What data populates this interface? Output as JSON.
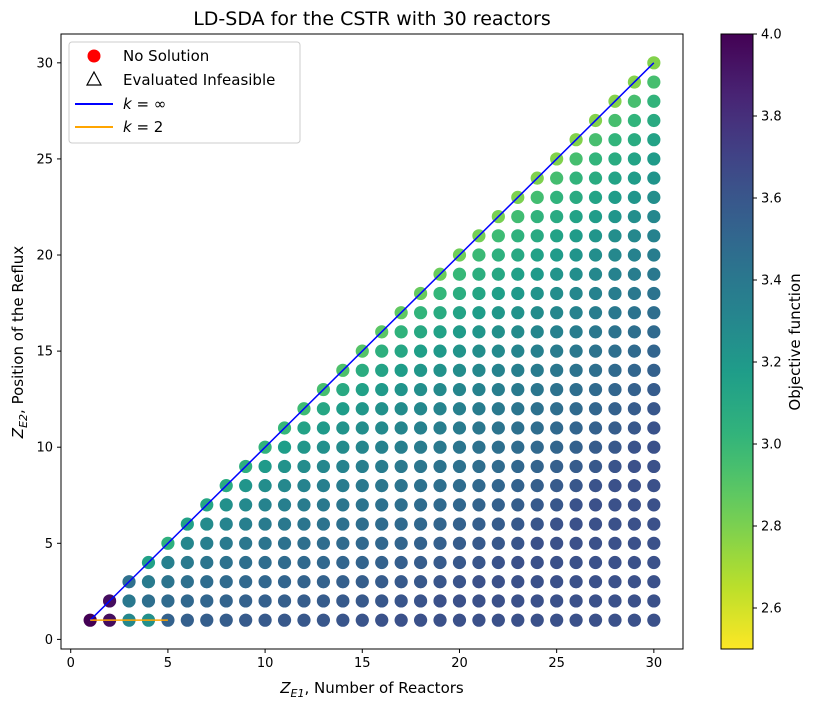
{
  "chart_data": {
    "type": "scatter",
    "title": "LD-SDA for the CSTR with 30 reactors",
    "xlabel_sym": "Z",
    "xlabel_sub": "E1",
    "xlabel_text": ",  Number of Reactors",
    "ylabel_sym": "Z",
    "ylabel_sub": "E2",
    "ylabel_text": ",  Position of the Reflux",
    "xlim": [
      -0.5,
      31.5
    ],
    "ylim": [
      -0.5,
      31.5
    ],
    "xticks": [
      0,
      5,
      10,
      15,
      20,
      25,
      30
    ],
    "yticks": [
      0,
      5,
      10,
      15,
      20,
      25,
      30
    ],
    "grid": false,
    "point_rule": "a point at every integer (x, y) with 1 <= y <= x <= 30",
    "n_points": 465,
    "objective_model": {
      "description": "approximate objective value read from the colour of each point",
      "diagonal_min": 2.78,
      "diagonal_slope": 0.68,
      "diagonal_min_x": 28,
      "distance_from_diagonal_scale": 0.075,
      "distance_curve_exponent": 0.55,
      "cap": 3.63,
      "overrides": [
        {
          "x": 1,
          "y": 1,
          "value": 4.0
        },
        {
          "x": 2,
          "y": 1,
          "value": 3.95
        },
        {
          "x": 2,
          "y": 2,
          "value": 3.95
        },
        {
          "x": 3,
          "y": 1,
          "value": 3.3
        },
        {
          "x": 3,
          "y": 2,
          "value": 3.4
        },
        {
          "x": 3,
          "y": 3,
          "value": 3.45
        },
        {
          "x": 4,
          "y": 4,
          "value": 3.15
        },
        {
          "x": 4,
          "y": 1,
          "value": 3.25
        },
        {
          "x": 5,
          "y": 5,
          "value": 3.05
        }
      ]
    },
    "colorbar": {
      "label": "Objective function",
      "vmin": 2.5,
      "vmax": 4.0,
      "ticks": [
        2.6,
        2.8,
        3.0,
        3.2,
        3.4,
        3.6,
        3.8,
        4.0
      ],
      "colormap": "viridis_r"
    },
    "paths": [
      {
        "name": "k_inf",
        "color": "#0000ff",
        "x": [
          1,
          30
        ],
        "y": [
          1,
          30
        ]
      },
      {
        "name": "k_2",
        "color": "#ffa500",
        "x": [
          1,
          5
        ],
        "y": [
          1,
          1
        ]
      }
    ],
    "legend": {
      "position": "upper-left",
      "entries": [
        {
          "label": "No Solution",
          "marker": "circle",
          "color": "#ff0000"
        },
        {
          "label": "Evaluated Infeasible",
          "marker": "triangle",
          "color": "#000000"
        },
        {
          "label_prefix": "k = ",
          "label_symbol": "∞",
          "marker": "line",
          "color": "#0000ff"
        },
        {
          "label_prefix": "k = ",
          "label_symbol": "2",
          "marker": "line",
          "color": "#ffa500"
        }
      ]
    }
  }
}
